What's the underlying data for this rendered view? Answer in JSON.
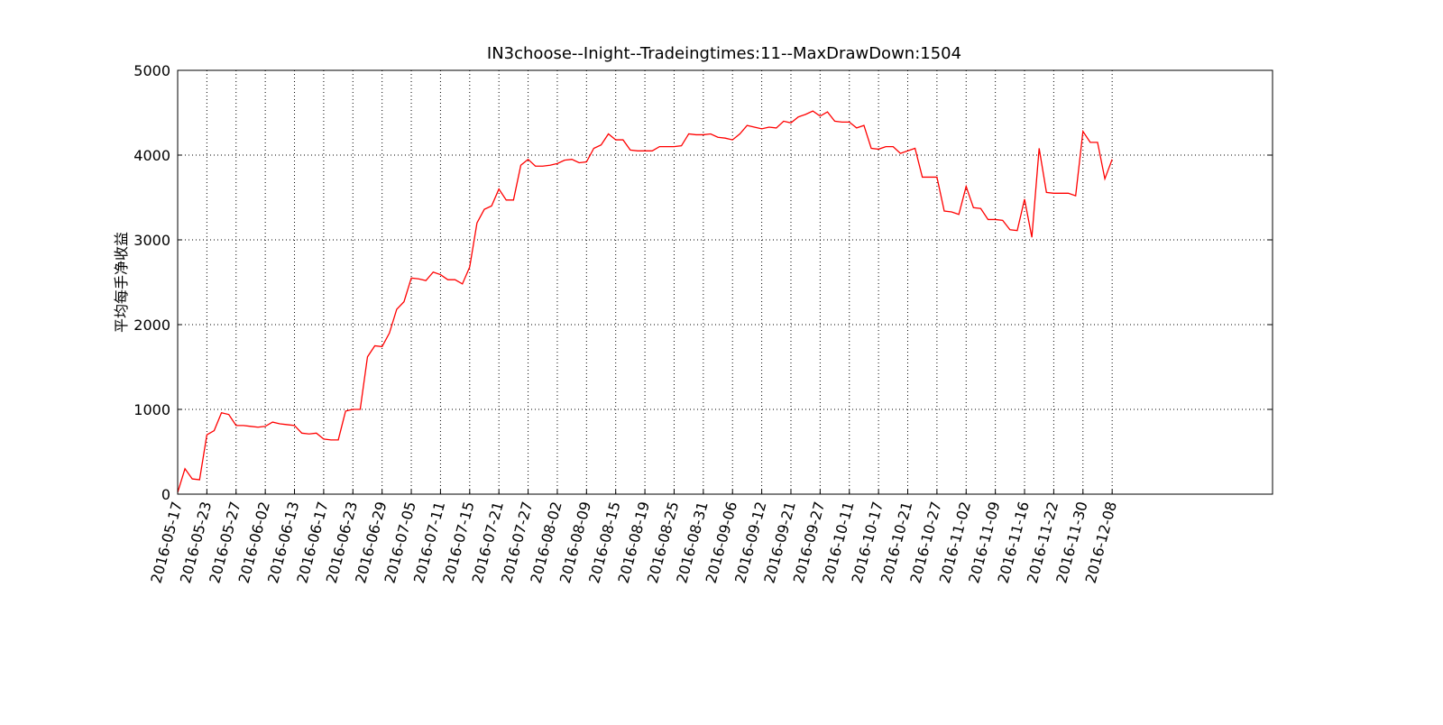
{
  "chart_data": {
    "type": "line",
    "title": "IN3choose--Inight--Tradeingtimes:11--MaxDrawDown:1504",
    "ylabel": "平均每手净收益",
    "color": "#ff0000",
    "grid": true,
    "ylim": [
      0,
      5000
    ],
    "yticks": [
      0,
      1000,
      2000,
      3000,
      4000,
      5000
    ],
    "categories": [
      "2016-05-17",
      null,
      null,
      null,
      "2016-05-23",
      null,
      null,
      null,
      "2016-05-27",
      null,
      null,
      null,
      "2016-06-02",
      null,
      null,
      null,
      "2016-06-13",
      null,
      null,
      null,
      "2016-06-17",
      null,
      null,
      null,
      "2016-06-23",
      null,
      null,
      null,
      "2016-06-29",
      null,
      null,
      null,
      "2016-07-05",
      null,
      null,
      null,
      "2016-07-11",
      null,
      null,
      null,
      "2016-07-15",
      null,
      null,
      null,
      "2016-07-21",
      null,
      null,
      null,
      "2016-07-27",
      null,
      null,
      null,
      "2016-08-02",
      null,
      null,
      null,
      "2016-08-09",
      null,
      null,
      null,
      "2016-08-15",
      null,
      null,
      null,
      "2016-08-19",
      null,
      null,
      null,
      "2016-08-25",
      null,
      null,
      null,
      "2016-08-31",
      null,
      null,
      null,
      "2016-09-06",
      null,
      null,
      null,
      "2016-09-12",
      null,
      null,
      null,
      "2016-09-21",
      null,
      null,
      null,
      "2016-09-27",
      null,
      null,
      null,
      "2016-10-11",
      null,
      null,
      null,
      "2016-10-17",
      null,
      null,
      null,
      "2016-10-21",
      null,
      null,
      null,
      "2016-10-27",
      null,
      null,
      null,
      "2016-11-02",
      null,
      null,
      null,
      "2016-11-09",
      null,
      null,
      null,
      "2016-11-16",
      null,
      null,
      null,
      "2016-11-22",
      null,
      null,
      null,
      "2016-11-30",
      null,
      null,
      null,
      "2016-12-08"
    ],
    "values": [
      20,
      300,
      180,
      170,
      700,
      750,
      960,
      940,
      810,
      810,
      800,
      790,
      800,
      850,
      830,
      820,
      810,
      720,
      710,
      720,
      650,
      640,
      640,
      980,
      1000,
      1000,
      1620,
      1750,
      1740,
      1900,
      2180,
      2270,
      2550,
      2540,
      2520,
      2620,
      2590,
      2530,
      2530,
      2480,
      2680,
      3200,
      3360,
      3400,
      3600,
      3470,
      3470,
      3880,
      3950,
      3870,
      3870,
      3880,
      3900,
      3940,
      3950,
      3910,
      3920,
      4080,
      4120,
      4250,
      4180,
      4180,
      4060,
      4050,
      4050,
      4050,
      4100,
      4100,
      4100,
      4110,
      4250,
      4240,
      4240,
      4250,
      4210,
      4200,
      4180,
      4250,
      4350,
      4330,
      4310,
      4330,
      4320,
      4400,
      4380,
      4450,
      4480,
      4520,
      4460,
      4510,
      4400,
      4390,
      4390,
      4320,
      4350,
      4080,
      4070,
      4100,
      4100,
      4020,
      4050,
      4080,
      3740,
      3740,
      3740,
      3340,
      3330,
      3300,
      3630,
      3380,
      3370,
      3240,
      3240,
      3230,
      3120,
      3110,
      3480,
      3030,
      4080,
      3560,
      3550,
      3550,
      3550,
      3520,
      4280,
      4150,
      4150,
      3720,
      3950
    ]
  }
}
